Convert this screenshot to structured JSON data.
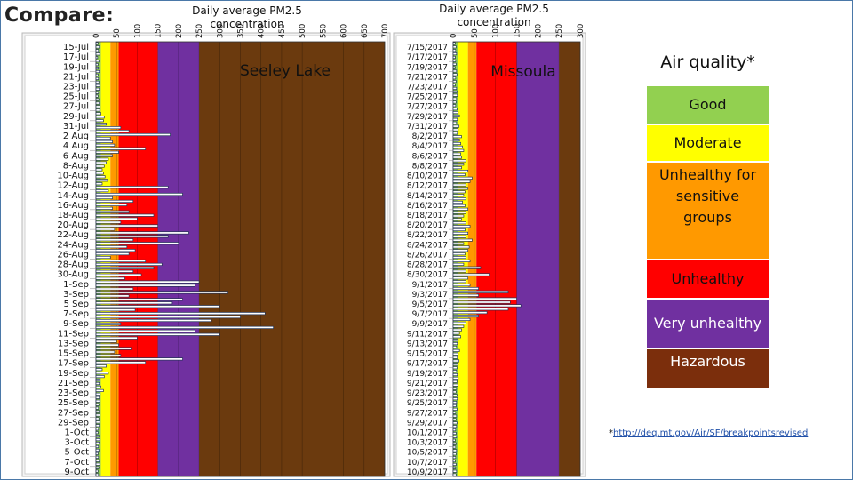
{
  "slide": {
    "title": "Compare:"
  },
  "chart_data": [
    {
      "type": "bar",
      "orientation": "horizontal",
      "name": "Seeley Lake",
      "title": "Daily average PM2.5 concentration",
      "panel_label": "Seeley Lake",
      "xlim": [
        0,
        700
      ],
      "xticks": [
        0,
        50,
        100,
        150,
        200,
        250,
        300,
        350,
        400,
        450,
        500,
        550,
        600,
        650,
        700
      ],
      "bands": [
        {
          "from": 0,
          "to": 12,
          "color": "#92d050"
        },
        {
          "from": 12,
          "to": 35,
          "color": "#ffff00"
        },
        {
          "from": 35,
          "to": 55,
          "color": "#ff9900"
        },
        {
          "from": 55,
          "to": 150,
          "color": "#ff0000"
        },
        {
          "from": 150,
          "to": 250,
          "color": "#7030a0"
        },
        {
          "from": 250,
          "to": 700,
          "color": "#6b3a0e"
        }
      ],
      "category_labels": [
        "15-Jul",
        "17-Jul",
        "19-Jul",
        "21-Jul",
        "23-Jul",
        "25-Jul",
        "27-Jul",
        "29-Jul",
        "31-Jul",
        "2 Aug",
        "4 Aug",
        "6-Aug",
        "8-Aug",
        "10-Aug",
        "12-Aug",
        "14-Aug",
        "16-Aug",
        "18-Aug",
        "20-Aug",
        "22-Aug",
        "24-Aug",
        "26-Aug",
        "28-Aug",
        "30-Aug",
        "1-Sep",
        "3-Sep",
        "5 Sep",
        "7-Sep",
        "9-Sep",
        "11-Sep",
        "13-Sep",
        "15-Sep",
        "17-Sep",
        "19-Sep",
        "21-Sep",
        "23-Sep",
        "25-Sep",
        "27-Sep",
        "29-Sep",
        "1-Oct",
        "3-Oct",
        "5-Oct",
        "7-Oct",
        "9-Oct"
      ],
      "values": [
        5,
        8,
        6,
        9,
        4,
        7,
        5,
        6,
        8,
        5,
        6,
        7,
        9,
        8,
        6,
        5,
        7,
        8,
        10,
        9,
        12,
        20,
        18,
        25,
        60,
        80,
        180,
        35,
        40,
        45,
        120,
        55,
        40,
        30,
        25,
        20,
        15,
        18,
        22,
        28,
        15,
        175,
        30,
        210,
        40,
        90,
        75,
        40,
        80,
        140,
        100,
        60,
        150,
        45,
        225,
        175,
        90,
        200,
        75,
        95,
        80,
        35,
        120,
        160,
        140,
        90,
        110,
        70,
        250,
        240,
        90,
        320,
        80,
        210,
        185,
        300,
        95,
        410,
        350,
        280,
        60,
        430,
        240,
        300,
        100,
        50,
        55,
        85,
        45,
        60,
        210,
        120,
        25,
        15,
        30,
        20,
        10,
        8,
        12,
        18,
        10,
        8,
        9,
        7,
        6,
        8,
        10,
        7,
        9,
        8,
        6,
        5,
        7,
        9,
        8,
        6,
        7,
        5,
        6,
        8,
        9,
        7,
        5,
        6
      ]
    },
    {
      "type": "bar",
      "orientation": "horizontal",
      "name": "Missoula",
      "title": "Daily average PM2.5 concentration",
      "panel_label": "Missoula",
      "xlim": [
        0,
        300
      ],
      "xticks": [
        0,
        50,
        100,
        150,
        200,
        250,
        300
      ],
      "bands": [
        {
          "from": 0,
          "to": 12,
          "color": "#92d050"
        },
        {
          "from": 12,
          "to": 35,
          "color": "#ffff00"
        },
        {
          "from": 35,
          "to": 55,
          "color": "#ff9900"
        },
        {
          "from": 55,
          "to": 150,
          "color": "#ff0000"
        },
        {
          "from": 150,
          "to": 250,
          "color": "#7030a0"
        },
        {
          "from": 250,
          "to": 300,
          "color": "#6b3a0e"
        }
      ],
      "category_labels": [
        "7/15/2017",
        "7/17/2017",
        "7/19/2017",
        "7/21/2017",
        "7/23/2017",
        "7/25/2017",
        "7/27/2017",
        "7/29/2017",
        "7/31/2017",
        "8/2/2017",
        "8/4/2017",
        "8/6/2017",
        "8/8/2017",
        "8/10/2017",
        "8/12/2017",
        "8/14/2017",
        "8/16/2017",
        "8/18/2017",
        "8/20/2017",
        "8/22/2017",
        "8/24/2017",
        "8/26/2017",
        "8/28/2017",
        "8/30/2017",
        "9/1/2017",
        "9/3/2017",
        "9/5/2017",
        "9/7/2017",
        "9/9/2017",
        "9/11/2017",
        "9/13/2017",
        "9/15/2017",
        "9/17/2017",
        "9/19/2017",
        "9/21/2017",
        "9/23/2017",
        "9/25/2017",
        "9/27/2017",
        "9/29/2017",
        "10/1/2017",
        "10/3/2017",
        "10/5/2017",
        "10/7/2017",
        "10/9/2017"
      ],
      "values": [
        5,
        7,
        6,
        8,
        5,
        6,
        7,
        5,
        8,
        9,
        6,
        7,
        5,
        8,
        9,
        10,
        8,
        7,
        6,
        9,
        12,
        15,
        10,
        8,
        14,
        12,
        10,
        20,
        15,
        18,
        22,
        25,
        18,
        20,
        30,
        25,
        20,
        35,
        28,
        45,
        40,
        30,
        35,
        28,
        25,
        30,
        22,
        28,
        35,
        30,
        25,
        20,
        30,
        40,
        28,
        35,
        30,
        45,
        25,
        38,
        35,
        28,
        30,
        40,
        25,
        65,
        30,
        85,
        35,
        30,
        40,
        60,
        130,
        60,
        150,
        135,
        160,
        130,
        80,
        60,
        40,
        30,
        25,
        20,
        15,
        18,
        12,
        10,
        8,
        15,
        12,
        10,
        14,
        12,
        9,
        8,
        10,
        12,
        9,
        11,
        8,
        7,
        9,
        10,
        8,
        7,
        9,
        6,
        8,
        7,
        9,
        8,
        6,
        7,
        8,
        5,
        7,
        6,
        8,
        7,
        6,
        5,
        7,
        6,
        8,
        7
      ]
    }
  ],
  "legend": {
    "title": "Air quality*",
    "items": [
      {
        "label": "Good",
        "color": "#92d050",
        "text_color": "#111111"
      },
      {
        "label": "Moderate",
        "color": "#ffff00",
        "text_color": "#111111"
      },
      {
        "label": "Unhealthy for sensitive groups",
        "color": "#ff9900",
        "text_color": "#111111"
      },
      {
        "label": "Unhealthy",
        "color": "#ff0000",
        "text_color": "#111111"
      },
      {
        "label": "Very unhealthy",
        "color": "#7030a0",
        "text_color": "#ffffff"
      },
      {
        "label": "Hazardous",
        "color": "#7b2e0c",
        "text_color": "#ffffff"
      }
    ]
  },
  "footnote": {
    "prefix": "*",
    "link_text": "http://deq.mt.gov/Air/SF/breakpointsrevised"
  }
}
